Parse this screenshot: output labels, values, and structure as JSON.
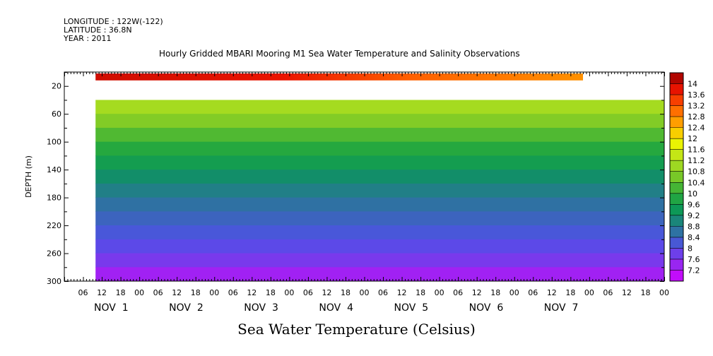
{
  "header": {
    "longitude": "LONGITUDE : 122W(-122)",
    "latitude": "LATITUDE : 36.8N",
    "year": "YEAR : 2011"
  },
  "chart_data": {
    "type": "heatmap",
    "title": "Hourly Gridded MBARI Mooring M1 Sea Water Temperature and Salinity Observations",
    "xlabel": "Sea Water Temperature (Celsius)",
    "ylabel": "DEPTH (m)",
    "x_hour_range": [
      0,
      192
    ],
    "x_hour_ticks": [
      "06",
      "12",
      "18",
      "00",
      "06",
      "12",
      "18",
      "00",
      "06",
      "12",
      "18",
      "00",
      "06",
      "12",
      "18",
      "00",
      "06",
      "12",
      "18",
      "00",
      "06",
      "12",
      "18",
      "00",
      "06",
      "12",
      "18",
      "00",
      "06",
      "12",
      "18",
      "00"
    ],
    "x_day_labels": [
      "NOV  1",
      "NOV  2",
      "NOV  3",
      "NOV  4",
      "NOV  5",
      "NOV  6",
      "NOV  7"
    ],
    "y_range": [
      300,
      0
    ],
    "y_ticks": [
      "20",
      "60",
      "100",
      "140",
      "180",
      "220",
      "260",
      "300"
    ],
    "colorbar_ticks": [
      "14",
      "13.6",
      "13.2",
      "12.8",
      "12.4",
      "12",
      "11.6",
      "11.2",
      "10.8",
      "10.4",
      "10",
      "9.6",
      "9.2",
      "8.8",
      "8.4",
      "8",
      "7.6",
      "7.2"
    ],
    "colorbar_range": [
      7.0,
      14.2
    ],
    "data_hour_range": [
      10,
      192
    ],
    "surface_band": {
      "depth_range": [
        2,
        12
      ],
      "hour_range": [
        10,
        166
      ],
      "values": [
        {
          "hour": 10,
          "value": 13.8
        },
        {
          "hour": 70,
          "value": 13.6
        },
        {
          "hour": 110,
          "value": 13.0
        },
        {
          "hour": 166,
          "value": 12.6
        }
      ]
    },
    "gap_depth_range": [
      12,
      40
    ],
    "depth_profile": [
      {
        "depth": 40,
        "value": 11.2
      },
      {
        "depth": 60,
        "value": 10.9
      },
      {
        "depth": 80,
        "value": 10.5
      },
      {
        "depth": 100,
        "value": 10.1
      },
      {
        "depth": 120,
        "value": 9.8
      },
      {
        "depth": 140,
        "value": 9.4
      },
      {
        "depth": 160,
        "value": 9.1
      },
      {
        "depth": 180,
        "value": 8.8
      },
      {
        "depth": 200,
        "value": 8.6
      },
      {
        "depth": 220,
        "value": 8.4
      },
      {
        "depth": 240,
        "value": 8.2
      },
      {
        "depth": 260,
        "value": 8.0
      },
      {
        "depth": 280,
        "value": 7.7
      },
      {
        "depth": 300,
        "value": 7.3
      }
    ]
  }
}
